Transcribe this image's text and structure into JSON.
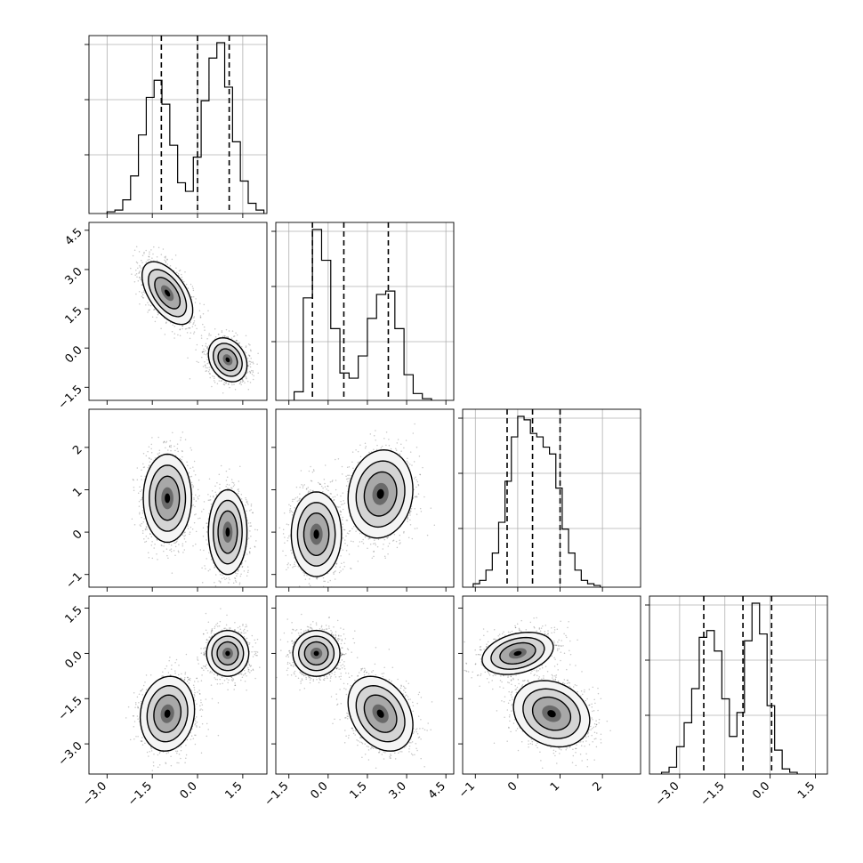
{
  "chart_data": {
    "type": "corner",
    "parameters": 4,
    "axes": [
      {
        "range": [
          -3.6,
          2.3
        ],
        "ticks": [
          -3.0,
          -1.5,
          0.0,
          1.5
        ],
        "tick_labels": [
          "−3.0",
          "−1.5",
          "0.0",
          "1.5"
        ]
      },
      {
        "range": [
          -2.0,
          4.8
        ],
        "ticks": [
          -1.5,
          0.0,
          1.5,
          3.0,
          4.5
        ],
        "tick_labels": [
          "−1.5",
          "0.0",
          "1.5",
          "3.0",
          "4.5"
        ]
      },
      {
        "range": [
          -1.3,
          2.9
        ],
        "ticks": [
          -1,
          0,
          1,
          2
        ],
        "tick_labels": [
          "−1",
          "0",
          "1",
          "2"
        ]
      },
      {
        "range": [
          -4.0,
          1.9
        ],
        "ticks": [
          -3.0,
          -1.5,
          0.0,
          1.5
        ],
        "tick_labels": [
          "−3.0",
          "−1.5",
          "0.0",
          "1.5"
        ]
      }
    ],
    "histograms": [
      {
        "bins": [
          -3.0,
          -2.74,
          -2.48,
          -2.22,
          -1.96,
          -1.7,
          -1.44,
          -1.18,
          -0.92,
          -0.66,
          -0.4,
          -0.14,
          0.12,
          0.38,
          0.64,
          0.9,
          1.16,
          1.42,
          1.68,
          1.94,
          2.2
        ],
        "counts": [
          0.01,
          0.02,
          0.08,
          0.22,
          0.46,
          0.68,
          0.78,
          0.64,
          0.4,
          0.18,
          0.13,
          0.33,
          0.66,
          0.91,
          1.0,
          0.74,
          0.42,
          0.19,
          0.06,
          0.02
        ],
        "quantiles": [
          -1.2,
          0.0,
          1.05
        ]
      },
      {
        "bins": [
          -1.3,
          -0.95,
          -0.6,
          -0.25,
          0.1,
          0.45,
          0.8,
          1.15,
          1.5,
          1.85,
          2.2,
          2.55,
          2.9,
          3.25,
          3.6,
          3.95
        ],
        "counts": [
          0.05,
          0.6,
          1.0,
          0.82,
          0.42,
          0.16,
          0.13,
          0.26,
          0.48,
          0.62,
          0.64,
          0.42,
          0.15,
          0.04,
          0.01
        ],
        "quantiles": [
          -0.6,
          0.6,
          2.3
        ]
      },
      {
        "bins": [
          -1.05,
          -0.9,
          -0.75,
          -0.6,
          -0.45,
          -0.3,
          -0.15,
          0.0,
          0.15,
          0.3,
          0.45,
          0.6,
          0.75,
          0.9,
          1.05,
          1.2,
          1.35,
          1.5,
          1.65,
          1.8,
          1.95
        ],
        "counts": [
          0.02,
          0.04,
          0.1,
          0.2,
          0.38,
          0.62,
          0.88,
          1.0,
          0.98,
          0.9,
          0.88,
          0.82,
          0.78,
          0.58,
          0.34,
          0.2,
          0.1,
          0.04,
          0.02,
          0.01
        ],
        "quantiles": [
          -0.25,
          0.35,
          1.0
        ]
      },
      {
        "bins": [
          -3.6,
          -3.35,
          -3.1,
          -2.85,
          -2.6,
          -2.35,
          -2.1,
          -1.85,
          -1.6,
          -1.35,
          -1.1,
          -0.85,
          -0.6,
          -0.35,
          -0.1,
          0.15,
          0.4,
          0.65,
          0.9
        ],
        "counts": [
          0.01,
          0.04,
          0.16,
          0.3,
          0.5,
          0.8,
          0.84,
          0.72,
          0.44,
          0.22,
          0.36,
          0.78,
          1.0,
          0.82,
          0.4,
          0.14,
          0.03,
          0.01
        ],
        "quantiles": [
          -2.2,
          -0.9,
          0.05
        ]
      }
    ],
    "pair_modes": [
      {
        "i": 1,
        "j": 0,
        "modes": [
          {
            "mean": [
              -1.0,
              2.1
            ],
            "sd": [
              0.42,
              0.6
            ],
            "corr": -0.55
          },
          {
            "mean": [
              1.0,
              -0.45
            ],
            "sd": [
              0.32,
              0.42
            ],
            "corr": -0.25
          }
        ]
      },
      {
        "i": 2,
        "j": 0,
        "modes": [
          {
            "mean": [
              -1.0,
              0.8
            ],
            "sd": [
              0.4,
              0.52
            ],
            "corr": 0.0
          },
          {
            "mean": [
              1.0,
              0.0
            ],
            "sd": [
              0.32,
              0.5
            ],
            "corr": 0.0
          }
        ]
      },
      {
        "i": 2,
        "j": 1,
        "modes": [
          {
            "mean": [
              -0.45,
              -0.05
            ],
            "sd": [
              0.48,
              0.5
            ],
            "corr": 0.0
          },
          {
            "mean": [
              2.0,
              0.9
            ],
            "sd": [
              0.62,
              0.52
            ],
            "corr": 0.1
          }
        ]
      },
      {
        "i": 3,
        "j": 0,
        "modes": [
          {
            "mean": [
              -1.0,
              -2.0
            ],
            "sd": [
              0.45,
              0.62
            ],
            "corr": 0.1
          },
          {
            "mean": [
              1.0,
              0.0
            ],
            "sd": [
              0.35,
              0.38
            ],
            "corr": 0.0
          }
        ]
      },
      {
        "i": 3,
        "j": 1,
        "modes": [
          {
            "mean": [
              -0.45,
              0.0
            ],
            "sd": [
              0.45,
              0.38
            ],
            "corr": 0.0
          },
          {
            "mean": [
              2.0,
              -2.0
            ],
            "sd": [
              0.62,
              0.62
            ],
            "corr": -0.3
          }
        ]
      },
      {
        "i": 3,
        "j": 2,
        "modes": [
          {
            "mean": [
              0.0,
              0.0
            ],
            "sd": [
              0.42,
              0.35
            ],
            "corr": 0.3
          },
          {
            "mean": [
              0.8,
              -2.0
            ],
            "sd": [
              0.45,
              0.55
            ],
            "corr": -0.2
          }
        ]
      }
    ],
    "title": "",
    "xlabel": "",
    "ylabel": "",
    "grid": true,
    "contour_levels": [
      0.5,
      1.0,
      1.5,
      2.0
    ],
    "colors": {
      "axes": "#000000",
      "grid": "#b0b0b0",
      "samples": "#000000",
      "fill_light": "#f5f5f5",
      "fill_mid": "#d4d4d4",
      "fill_dark": "#a8a8a8",
      "fill_darkest": "#6a6a6a"
    }
  }
}
